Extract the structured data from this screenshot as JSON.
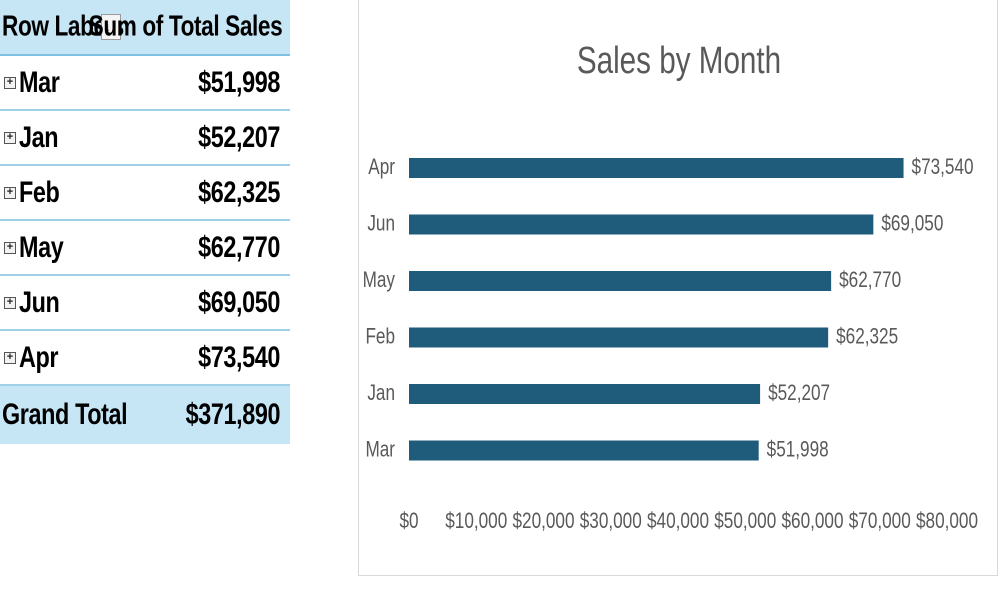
{
  "pivot": {
    "header": {
      "row_labels": "Row Labels",
      "sort_icon": "↓↑",
      "sum_label": "Sum of Total Sales"
    },
    "rows": [
      {
        "label": "Mar",
        "value": "$51,998"
      },
      {
        "label": "Jan",
        "value": "$52,207"
      },
      {
        "label": "Feb",
        "value": "$62,325"
      },
      {
        "label": "May",
        "value": "$62,770"
      },
      {
        "label": "Jun",
        "value": "$69,050"
      },
      {
        "label": "Apr",
        "value": "$73,540"
      }
    ],
    "grand_total": {
      "label": "Grand Total",
      "value": "$371,890"
    }
  },
  "chart_data": {
    "type": "bar",
    "orientation": "horizontal",
    "title": "Sales by Month",
    "categories": [
      "Apr",
      "Jun",
      "May",
      "Feb",
      "Jan",
      "Mar"
    ],
    "values": [
      73540,
      69050,
      62770,
      62325,
      52207,
      51998
    ],
    "data_labels": [
      "$73,540",
      "$69,050",
      "$62,770",
      "$62,325",
      "$52,207",
      "$51,998"
    ],
    "x_ticks": [
      "$0",
      "$10,000",
      "$20,000",
      "$30,000",
      "$40,000",
      "$50,000",
      "$60,000",
      "$70,000",
      "$80,000"
    ],
    "xlim": [
      0,
      80000
    ],
    "bar_color": "#1f5b7a",
    "grid": false,
    "legend": "none"
  }
}
